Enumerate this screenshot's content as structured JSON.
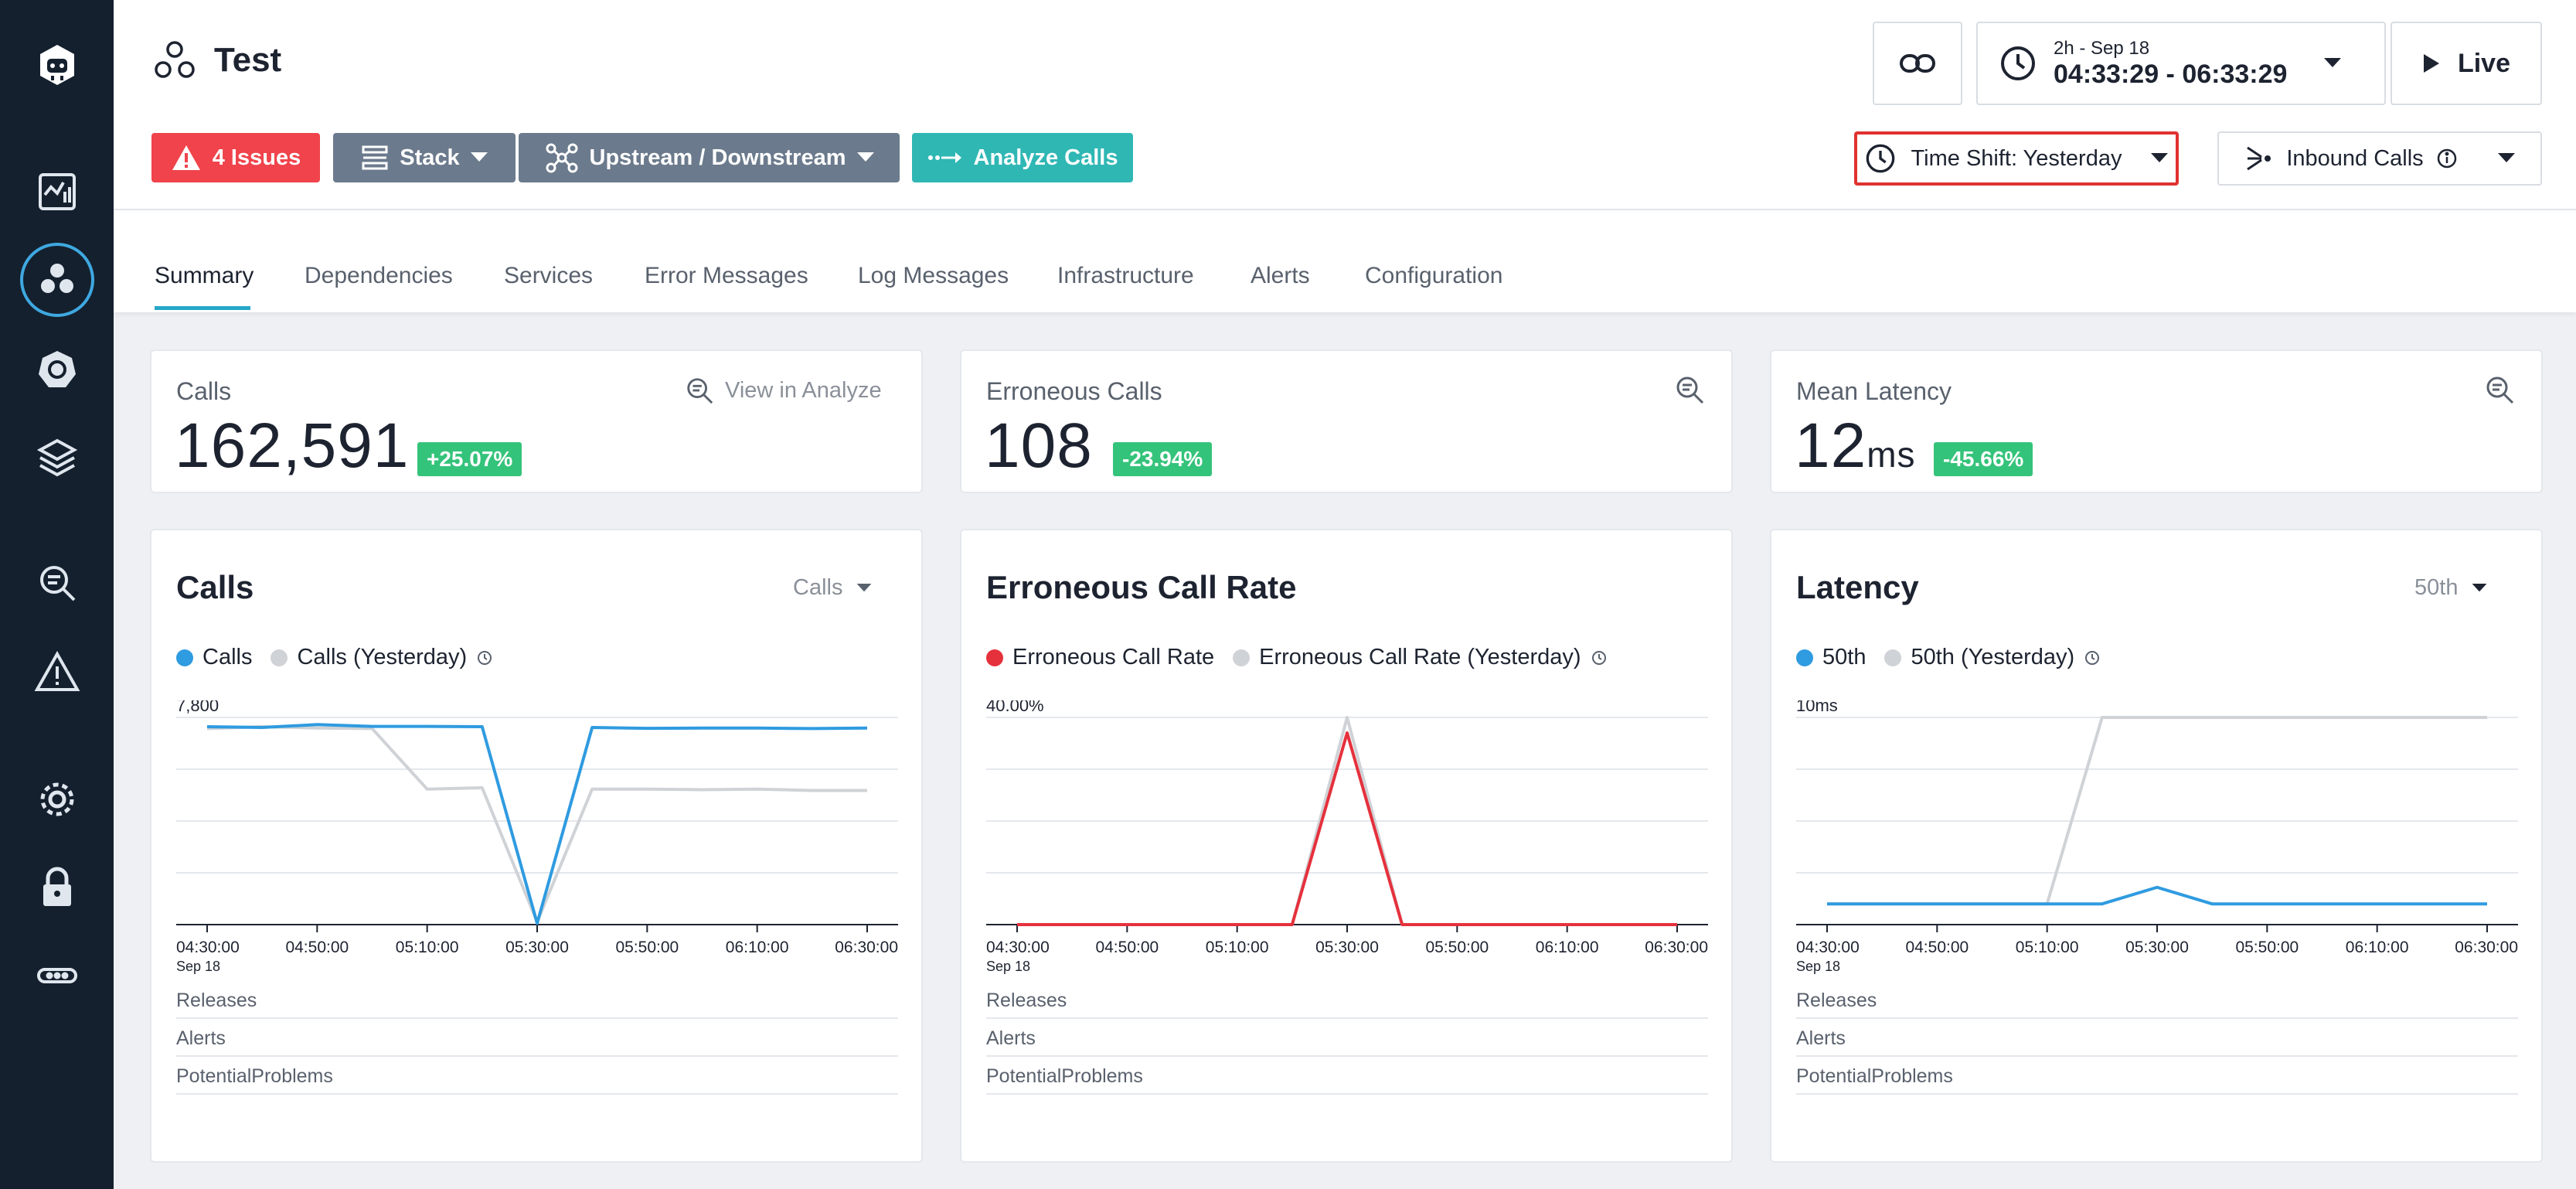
{
  "colors": {
    "sidebar_bg": "#14202e",
    "accent_teal": "#27a7c9",
    "issues_red": "#f0434b",
    "stack_gray": "#6b7a8c",
    "analyze_teal": "#2fb7b4",
    "badge_green": "#34c37a",
    "series_blue": "#2f9be0",
    "series_gray": "#cfd2d6",
    "series_red": "#e5313c",
    "highlight_red": "#e0322f"
  },
  "sidebar": {
    "items": [
      {
        "icon": "robot-logo-icon"
      },
      {
        "icon": "dashboard-monitor-icon"
      },
      {
        "icon": "services-cluster-icon"
      },
      {
        "icon": "kubernetes-helm-icon"
      },
      {
        "icon": "layers-stack-icon"
      },
      {
        "icon": "analyze-search-icon"
      },
      {
        "icon": "alert-triangle-icon"
      },
      {
        "icon": "settings-gear-icon"
      },
      {
        "icon": "lock-icon"
      },
      {
        "icon": "more-dots-icon"
      }
    ]
  },
  "header": {
    "title": "Test",
    "issues_label": "4 Issues",
    "stack_label": "Stack",
    "updown_label": "Upstream / Downstream",
    "analyze_label": "Analyze Calls",
    "time_range_top": "2h - Sep 18",
    "time_range_main": "04:33:29 - 06:33:29",
    "live_label": "Live",
    "time_shift_label": "Time Shift: Yesterday",
    "inbound_label": "Inbound Calls"
  },
  "tabs": [
    {
      "label": "Summary",
      "active": true
    },
    {
      "label": "Dependencies"
    },
    {
      "label": "Services"
    },
    {
      "label": "Error Messages"
    },
    {
      "label": "Log Messages"
    },
    {
      "label": "Infrastructure"
    },
    {
      "label": "Alerts"
    },
    {
      "label": "Configuration"
    }
  ],
  "stats": {
    "calls": {
      "label": "Calls",
      "value": "162,591",
      "change": "+25.07%",
      "link": "View in Analyze"
    },
    "errors": {
      "label": "Erroneous Calls",
      "value": "108",
      "change": "-23.94%"
    },
    "latency": {
      "label": "Mean Latency",
      "value": "12",
      "unit": "ms",
      "change": "-45.66%"
    }
  },
  "tracks": [
    "Releases",
    "Alerts",
    "PotentialProblems"
  ],
  "chart_data": [
    {
      "type": "line",
      "title": "Calls",
      "selector": "Calls",
      "ytick": "7,800",
      "ylim": [
        0,
        7800
      ],
      "x": [
        "04:30:00",
        "04:40:00",
        "04:50:00",
        "05:00:00",
        "05:10:00",
        "05:20:00",
        "05:30:00",
        "05:40:00",
        "05:50:00",
        "06:00:00",
        "06:10:00",
        "06:20:00",
        "06:30:00"
      ],
      "xtick_labels": [
        "04:30:00",
        "04:50:00",
        "05:10:00",
        "05:30:00",
        "05:50:00",
        "06:10:00",
        "06:30:00"
      ],
      "x_sublabel": "Sep 18",
      "series": [
        {
          "name": "Calls",
          "values": [
            7450,
            7420,
            7530,
            7460,
            7460,
            7450,
            50,
            7420,
            7390,
            7400,
            7400,
            7380,
            7400
          ]
        },
        {
          "name": "Calls (Yesterday)",
          "values": [
            7380,
            7450,
            7400,
            7380,
            5100,
            5150,
            100,
            5100,
            5100,
            5080,
            5100,
            5050,
            5050
          ]
        }
      ]
    },
    {
      "type": "line",
      "title": "Erroneous Call Rate",
      "ytick": "40.00%",
      "ylim": [
        0,
        40
      ],
      "x": [
        "04:30:00",
        "04:40:00",
        "04:50:00",
        "05:00:00",
        "05:10:00",
        "05:20:00",
        "05:30:00",
        "05:40:00",
        "05:50:00",
        "06:00:00",
        "06:10:00",
        "06:20:00",
        "06:30:00"
      ],
      "xtick_labels": [
        "04:30:00",
        "04:50:00",
        "05:10:00",
        "05:30:00",
        "05:50:00",
        "06:10:00",
        "06:30:00"
      ],
      "x_sublabel": "Sep 18",
      "series": [
        {
          "name": "Erroneous Call Rate",
          "values": [
            0,
            0,
            0,
            0,
            0,
            0,
            37,
            0,
            0,
            0,
            0,
            0,
            0
          ]
        },
        {
          "name": "Erroneous Call Rate (Yesterday)",
          "values": [
            0,
            0,
            0,
            0,
            0,
            0,
            40,
            0,
            0,
            0,
            0,
            0,
            0
          ]
        }
      ]
    },
    {
      "type": "line",
      "title": "Latency",
      "selector": "50th",
      "ytick": "10ms",
      "ylim": [
        0,
        10
      ],
      "x": [
        "04:30:00",
        "04:40:00",
        "04:50:00",
        "05:00:00",
        "05:10:00",
        "05:20:00",
        "05:30:00",
        "05:40:00",
        "05:50:00",
        "06:00:00",
        "06:10:00",
        "06:20:00",
        "06:30:00"
      ],
      "xtick_labels": [
        "04:30:00",
        "04:50:00",
        "05:10:00",
        "05:30:00",
        "05:50:00",
        "06:10:00",
        "06:30:00"
      ],
      "x_sublabel": "Sep 18",
      "series": [
        {
          "name": "50th",
          "values": [
            1,
            1,
            1,
            1,
            1,
            1,
            1.8,
            1,
            1,
            1,
            1,
            1,
            1
          ]
        },
        {
          "name": "50th (Yesterday)",
          "values": [
            1,
            1,
            1,
            1,
            1,
            10,
            10,
            10,
            10,
            10,
            10,
            10,
            10
          ]
        }
      ]
    }
  ]
}
